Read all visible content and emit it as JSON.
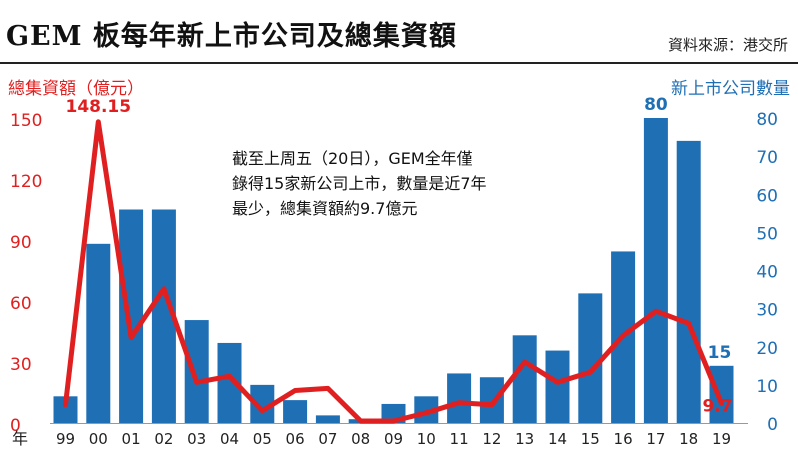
{
  "title": "GEM 板每年新上市公司及總集資額",
  "source": "資料來源：港交所",
  "chart_data": {
    "type": "bar",
    "categories": [
      "99",
      "00",
      "01",
      "02",
      "03",
      "04",
      "05",
      "06",
      "07",
      "08",
      "09",
      "10",
      "11",
      "12",
      "13",
      "14",
      "15",
      "16",
      "17",
      "18",
      "19"
    ],
    "xlabel": "年",
    "ylabel_left": "總集資額（億元）",
    "ylabel_right": "新上市公司數量",
    "y_left_ticks": [
      0,
      30,
      60,
      90,
      120,
      150
    ],
    "y_left_range": [
      0,
      150
    ],
    "y_right_ticks": [
      0,
      10,
      20,
      30,
      40,
      50,
      60,
      70,
      80
    ],
    "y_right_range": [
      0,
      80
    ],
    "series": [
      {
        "name": "新上市公司數量",
        "kind": "bar",
        "axis": "right",
        "color": "#1f6fb5",
        "values": [
          7,
          47,
          56,
          56,
          27,
          21,
          10,
          6,
          2,
          1,
          5,
          7,
          13,
          12,
          23,
          19,
          34,
          45,
          80,
          74,
          15
        ]
      },
      {
        "name": "總集資額",
        "kind": "line",
        "axis": "left",
        "color": "#e02020",
        "values": [
          9,
          148.15,
          42,
          66,
          20,
          23,
          6,
          16,
          17,
          1,
          1,
          5,
          10,
          9,
          30,
          20,
          25,
          43,
          55,
          49,
          9.7
        ]
      }
    ],
    "data_labels": [
      {
        "series": "總集資額",
        "category": "00",
        "text": "148.15"
      },
      {
        "series": "新上市公司數量",
        "category": "17",
        "text": "80"
      },
      {
        "series": "新上市公司數量",
        "category": "19",
        "text": "15"
      },
      {
        "series": "總集資額",
        "category": "19",
        "text": "9.7"
      }
    ],
    "annotation": "截至上周五（20日），GEM全年僅\n錄得15家新公司上市，數量是近7年\n最少，總集資額約9.7億元",
    "grid": false,
    "legend": "none"
  }
}
